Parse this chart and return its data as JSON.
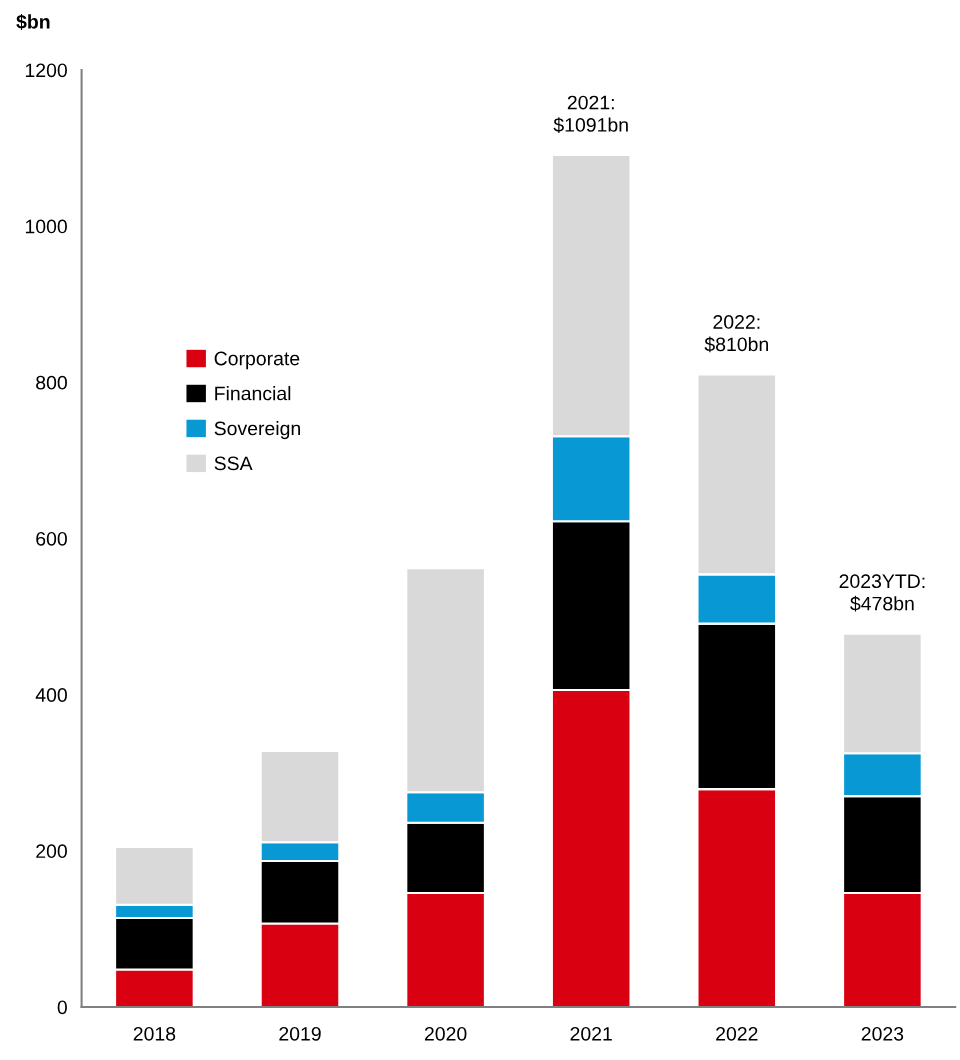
{
  "chart_data": {
    "type": "bar",
    "stacked": true,
    "ylabel": "$bn",
    "categories": [
      "2018",
      "2019",
      "2020",
      "2021",
      "2022",
      "2023"
    ],
    "series": [
      {
        "name": "Corporate",
        "color": "#d90012",
        "values": [
          48,
          107,
          146,
          406,
          279,
          146
        ]
      },
      {
        "name": "Financial",
        "color": "#000000",
        "values": [
          66,
          80,
          90,
          216,
          212,
          124
        ]
      },
      {
        "name": "Sovereign",
        "color": "#0898d3",
        "values": [
          17,
          24,
          39,
          109,
          63,
          55
        ]
      },
      {
        "name": "SSA",
        "color": "#d9d9d9",
        "values": [
          74,
          117,
          287,
          360,
          256,
          153
        ]
      }
    ],
    "ylim": [
      0,
      1200
    ],
    "yticks": [
      0,
      200,
      400,
      600,
      800,
      1000,
      1200
    ],
    "grid": false,
    "legend": "top left",
    "annotations": [
      {
        "text": "2021:\n$1091bn",
        "x": "2021",
        "y": 1091
      },
      {
        "text": "2022:\n$810bn",
        "x": "2022",
        "y": 810
      },
      {
        "text": "2023YTD:\n$478bn",
        "x": "2023",
        "y": 478
      }
    ]
  }
}
